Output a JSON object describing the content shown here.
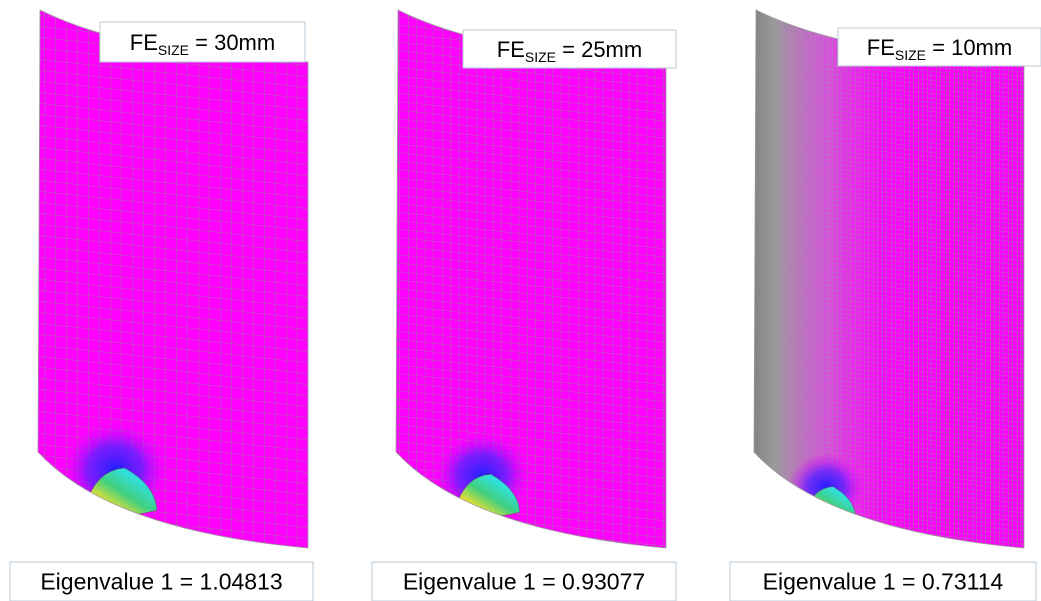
{
  "panels": [
    {
      "label": {
        "main": "FE",
        "sub": "SIZE",
        "rest": " = 30mm"
      },
      "caption": "Eigenvalue 1 = 1.04813"
    },
    {
      "label": {
        "main": "FE",
        "sub": "SIZE",
        "rest": " = 25mm"
      },
      "caption": "Eigenvalue 1 = 0.93077"
    },
    {
      "label": {
        "main": "FE",
        "sub": "SIZE",
        "rest": " = 10mm"
      },
      "caption": "Eigenvalue 1 = 0.73114"
    }
  ]
}
